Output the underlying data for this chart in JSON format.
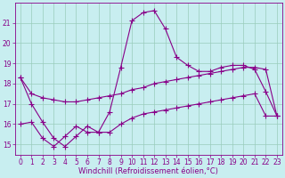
{
  "x_ticks": [
    0,
    1,
    2,
    3,
    4,
    5,
    6,
    7,
    8,
    9,
    10,
    11,
    12,
    13,
    14,
    15,
    16,
    17,
    18,
    19,
    20,
    21,
    22,
    23
  ],
  "series1_x": [
    0,
    1,
    2,
    3,
    4,
    5,
    6,
    7,
    8,
    9,
    10,
    11,
    12,
    13,
    14,
    15,
    16,
    17,
    18,
    19,
    20,
    21,
    22,
    23
  ],
  "series1_y": [
    18.3,
    17.0,
    16.1,
    15.3,
    14.9,
    15.4,
    15.9,
    15.6,
    16.6,
    18.8,
    21.1,
    21.5,
    21.6,
    20.7,
    19.3,
    18.9,
    18.6,
    18.6,
    18.8,
    18.9,
    18.9,
    18.7,
    17.6,
    16.4
  ],
  "series2_x": [
    0,
    1,
    2,
    3,
    4,
    5,
    6,
    7,
    8,
    9,
    10,
    11,
    12,
    13,
    14,
    15,
    16,
    17,
    18,
    19,
    20,
    21,
    22,
    23
  ],
  "series2_y": [
    18.3,
    17.5,
    17.3,
    17.2,
    17.1,
    17.1,
    17.2,
    17.3,
    17.4,
    17.5,
    17.7,
    17.8,
    18.0,
    18.1,
    18.2,
    18.3,
    18.4,
    18.5,
    18.6,
    18.7,
    18.8,
    18.8,
    18.7,
    16.4
  ],
  "series3_x": [
    0,
    1,
    2,
    3,
    4,
    5,
    6,
    7,
    8,
    9,
    10,
    11,
    12,
    13,
    14,
    15,
    16,
    17,
    18,
    19,
    20,
    21,
    22,
    23
  ],
  "series3_y": [
    16.0,
    16.1,
    15.3,
    14.9,
    15.4,
    15.9,
    15.6,
    15.6,
    15.6,
    16.0,
    16.3,
    16.5,
    16.6,
    16.7,
    16.8,
    16.9,
    17.0,
    17.1,
    17.2,
    17.3,
    17.4,
    17.5,
    16.4,
    16.4
  ],
  "line_color": "#880088",
  "bg_color": "#c8eef0",
  "grid_color": "#99ccbb",
  "xlabel": "Windchill (Refroidissement éolien,°C)",
  "ylim": [
    14.5,
    22.0
  ],
  "xlim": [
    -0.5,
    23.5
  ],
  "yticks": [
    15,
    16,
    17,
    18,
    19,
    20,
    21
  ],
  "xlabel_fontsize": 6,
  "tick_fontsize": 5.5,
  "marker_size": 2.0,
  "line_width": 0.8
}
